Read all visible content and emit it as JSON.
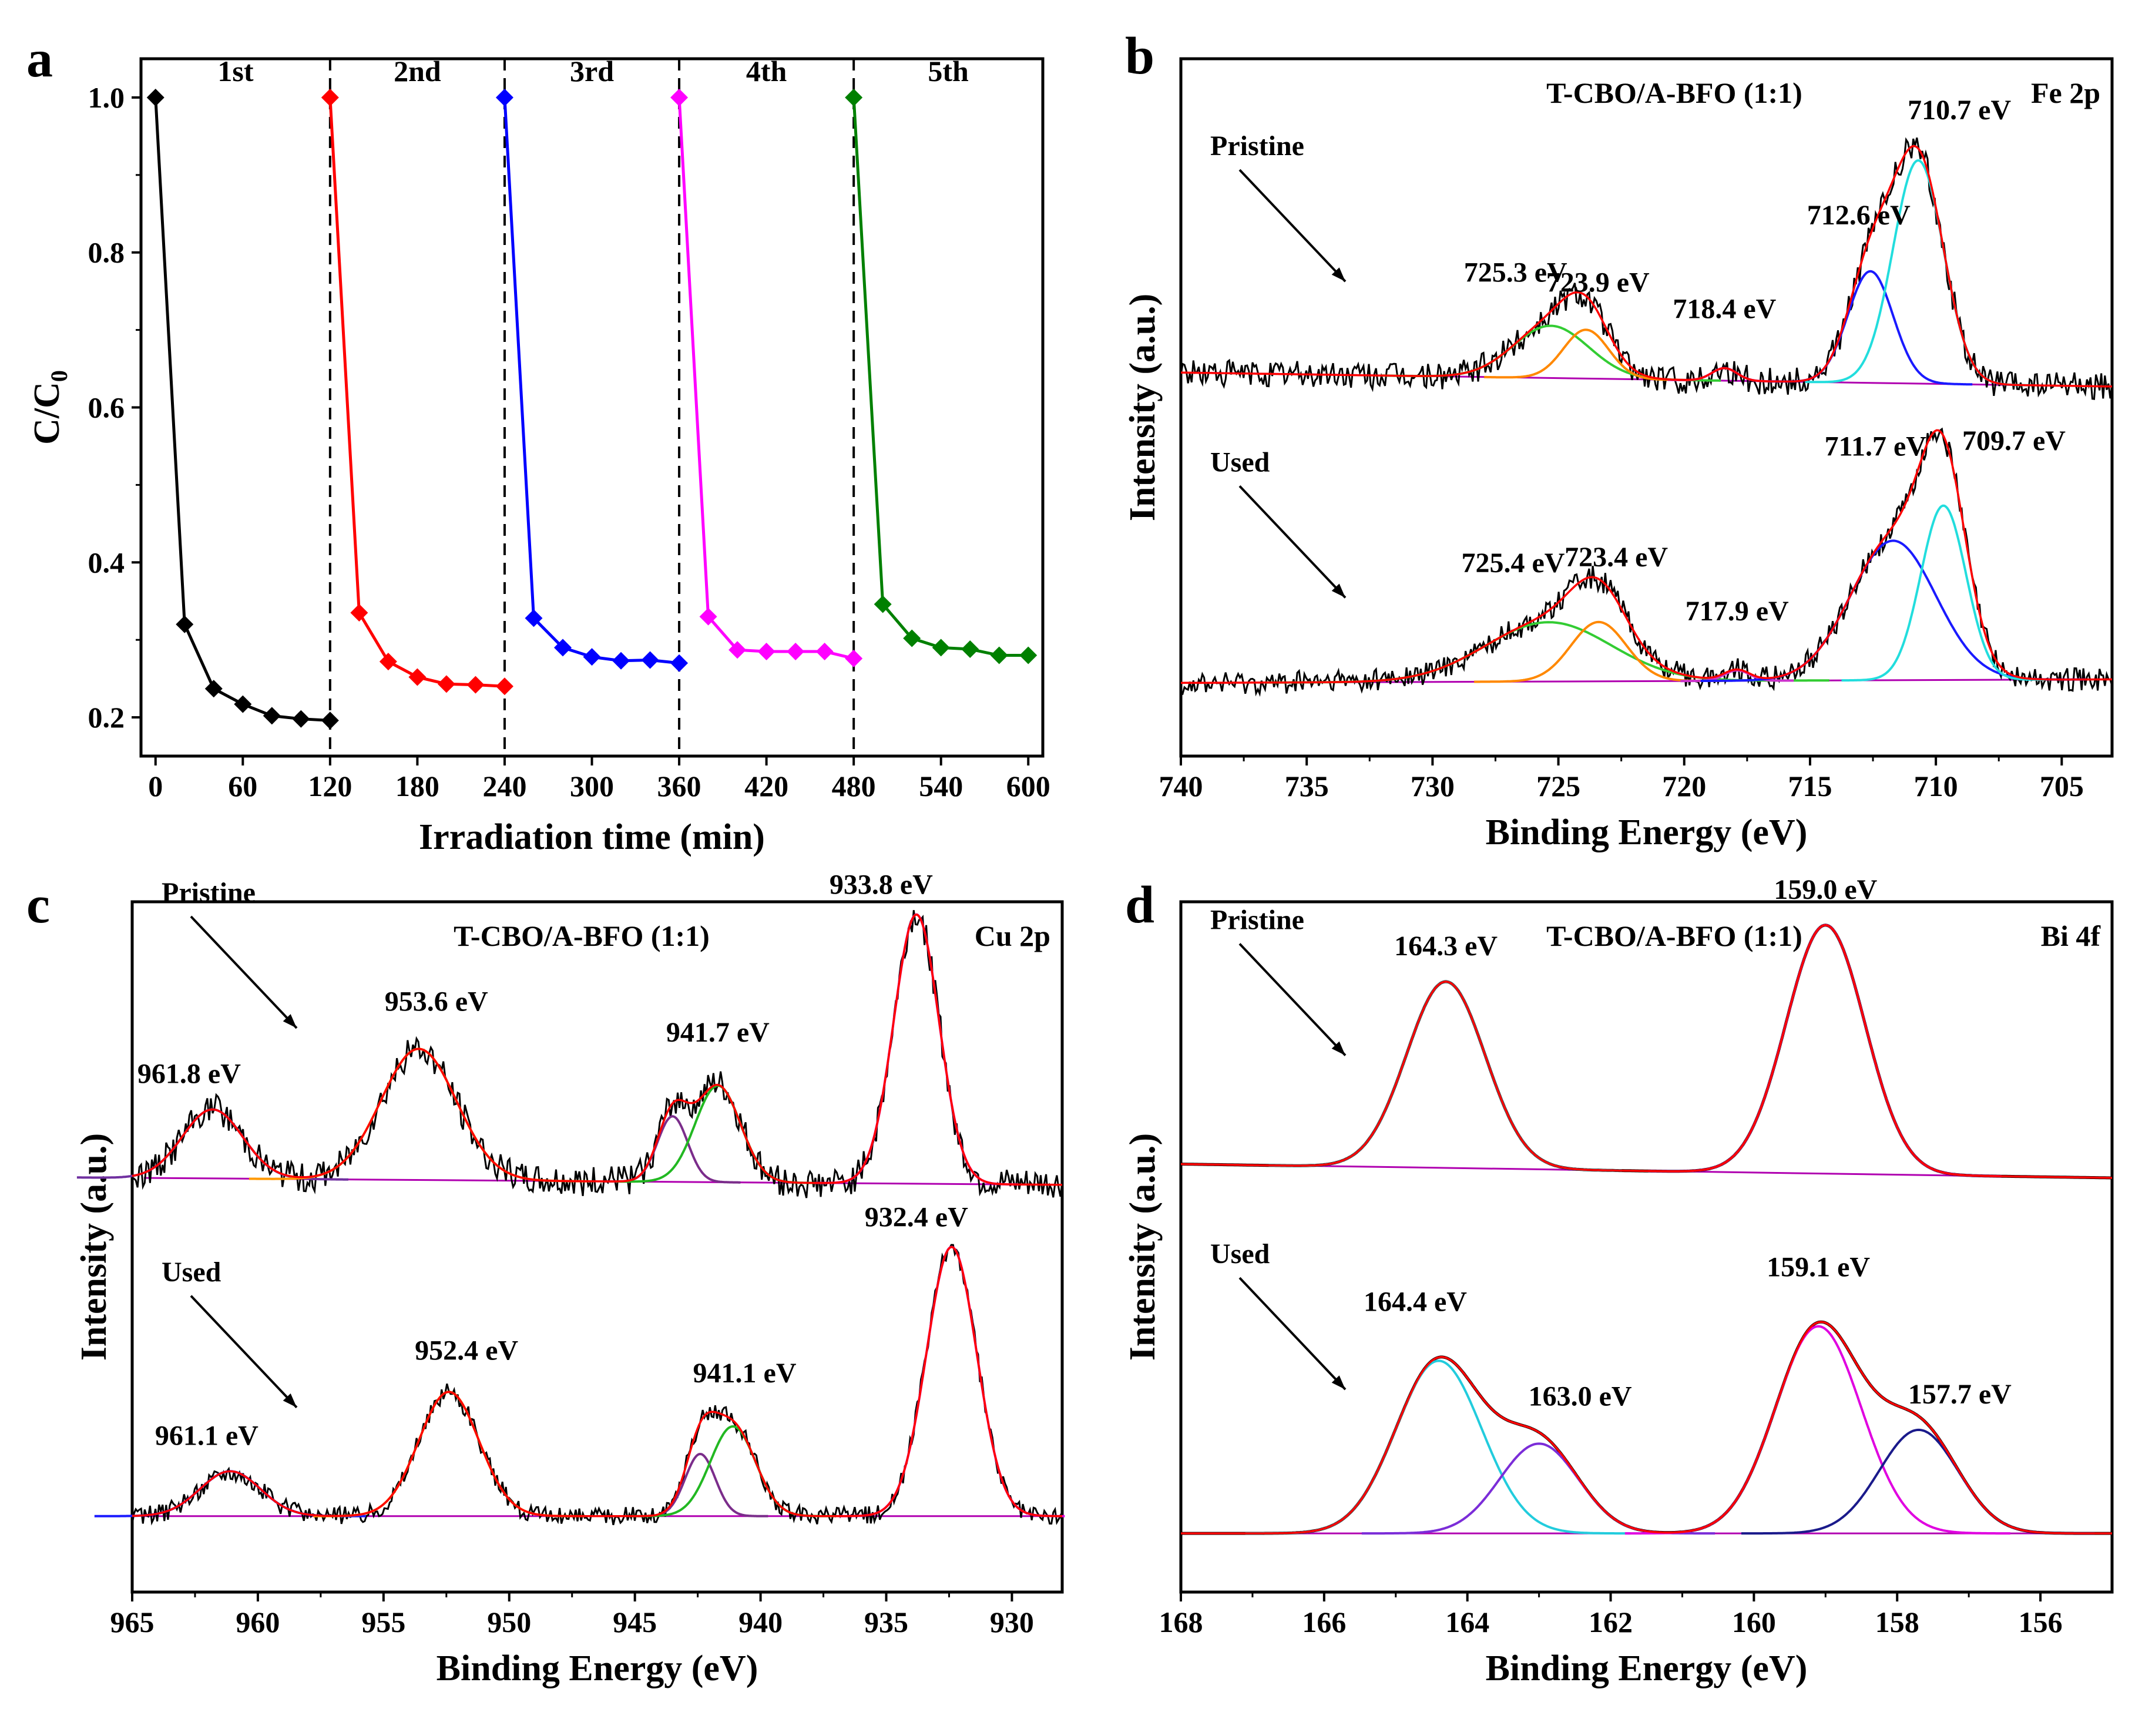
{
  "chart_data": [
    {
      "panel": "a",
      "type": "line",
      "panel_label": "a",
      "xlabel": "Irradiation time (min)",
      "ylabel": "C/C",
      "ylabel_sub": "0",
      "xlim": [
        -10,
        610
      ],
      "ylim": [
        0.15,
        1.05
      ],
      "xticks": [
        0,
        60,
        120,
        180,
        240,
        300,
        360,
        420,
        480,
        540,
        600
      ],
      "yticks": [
        0.2,
        0.4,
        0.6,
        0.8,
        1.0
      ],
      "ytick_labels": [
        "0.2",
        "0.4",
        "0.6",
        "0.8",
        "1.0"
      ],
      "cycle_labels": [
        "1st",
        "2nd",
        "3rd",
        "4th",
        "5th"
      ],
      "dividers": [
        120,
        240,
        360,
        480
      ],
      "series": [
        {
          "name": "1st",
          "color": "#000000",
          "x": [
            0,
            20,
            40,
            60,
            80,
            100,
            120
          ],
          "values": [
            1.0,
            0.32,
            0.237,
            0.217,
            0.202,
            0.198,
            0.196
          ]
        },
        {
          "name": "2nd",
          "color": "#ff0000",
          "x": [
            120,
            140,
            160,
            180,
            200,
            220,
            240
          ],
          "values": [
            1.0,
            0.335,
            0.272,
            0.252,
            0.243,
            0.242,
            0.24
          ]
        },
        {
          "name": "3rd",
          "color": "#0000ff",
          "x": [
            240,
            260,
            280,
            300,
            320,
            340,
            360
          ],
          "values": [
            1.0,
            0.328,
            0.29,
            0.278,
            0.273,
            0.274,
            0.27
          ]
        },
        {
          "name": "4th",
          "color": "#ff00ff",
          "x": [
            360,
            380,
            400,
            420,
            440,
            460,
            480
          ],
          "values": [
            1.0,
            0.33,
            0.287,
            0.285,
            0.285,
            0.285,
            0.276
          ]
        },
        {
          "name": "5th",
          "color": "#008000",
          "x": [
            480,
            500,
            520,
            540,
            560,
            580,
            600
          ],
          "values": [
            1.0,
            0.346,
            0.302,
            0.29,
            0.288,
            0.28,
            0.28
          ]
        }
      ]
    },
    {
      "panel": "b",
      "type": "line",
      "panel_label": "b",
      "title": "T-CBO/A-BFO (1:1)",
      "element": "Fe 2p",
      "xlabel": "Binding Energy (eV)",
      "ylabel": "Intensity (a.u.)",
      "xlim": [
        740,
        703
      ],
      "ylim": [
        0,
        1
      ],
      "xticks": [
        740,
        735,
        730,
        725,
        720,
        715,
        710,
        705
      ],
      "spectra": [
        {
          "name": "Pristine",
          "baseline": 0.55,
          "end_baseline": 0.53,
          "noise": 0.018,
          "peaks": [
            {
              "center": 725.3,
              "label": "725.3 eV",
              "amp": 0.075,
              "width": 1.5,
              "color": "#33cc33"
            },
            {
              "center": 723.9,
              "label": "723.9 eV",
              "amp": 0.07,
              "width": 0.9,
              "color": "#ff8800"
            },
            {
              "center": 718.4,
              "label": "718.4 eV",
              "amp": 0.018,
              "width": 0.5,
              "color": "#cc33cc"
            },
            {
              "center": 712.6,
              "label": "712.6 eV",
              "amp": 0.16,
              "width": 0.9,
              "color": "#1a1aff"
            },
            {
              "center": 710.7,
              "label": "710.7 eV",
              "amp": 0.32,
              "width": 1.0,
              "color": "#22dddd"
            }
          ]
        },
        {
          "name": "Used",
          "baseline": 0.105,
          "end_baseline": 0.11,
          "noise": 0.015,
          "peaks": [
            {
              "center": 725.4,
              "label": "725.4 eV",
              "amp": 0.085,
              "width": 2.5,
              "color": "#33cc33"
            },
            {
              "center": 723.4,
              "label": "723.4 eV",
              "amp": 0.085,
              "width": 1.1,
              "color": "#ff8800"
            },
            {
              "center": 717.9,
              "label": "717.9 eV",
              "amp": 0.015,
              "width": 0.5,
              "color": "#cc33cc"
            },
            {
              "center": 711.7,
              "label": "711.7 eV",
              "amp": 0.2,
              "width": 1.7,
              "color": "#1a1aff"
            },
            {
              "center": 709.7,
              "label": "709.7 eV",
              "amp": 0.25,
              "width": 0.9,
              "color": "#22dddd"
            }
          ]
        }
      ]
    },
    {
      "panel": "c",
      "type": "line",
      "panel_label": "c",
      "title": "T-CBO/A-BFO (1:1)",
      "element": "Cu 2p",
      "xlabel": "Binding Energy (eV)",
      "ylabel": "Intensity (a.u.)",
      "xlim": [
        965,
        928
      ],
      "ylim": [
        0,
        1
      ],
      "xticks": [
        965,
        960,
        955,
        950,
        945,
        940,
        935,
        930
      ],
      "spectra": [
        {
          "name": "Pristine",
          "baseline": 0.6,
          "end_baseline": 0.59,
          "noise": 0.02,
          "peaks": [
            {
              "center": 961.8,
              "label": "961.8 eV",
              "amp": 0.1,
              "width": 1.2,
              "color": "#7030a0"
            },
            {
              "center": 953.6,
              "label": "953.6 eV",
              "amp": 0.19,
              "width": 1.5,
              "color": "#ff9900"
            },
            {
              "center": 943.5,
              "label": "",
              "amp": 0.095,
              "width": 0.6,
              "color": "#7b2d8b"
            },
            {
              "center": 941.7,
              "label": "941.7 eV",
              "amp": 0.14,
              "width": 0.9,
              "color": "#22b822"
            },
            {
              "center": 933.8,
              "label": "933.8 eV",
              "amp": 0.39,
              "width": 0.9,
              "color": "#e000e0"
            }
          ]
        },
        {
          "name": "Used",
          "baseline": 0.11,
          "end_baseline": 0.11,
          "noise": 0.012,
          "peaks": [
            {
              "center": 961.1,
              "label": "961.1 eV",
              "amp": 0.065,
              "width": 1.2,
              "color": "#1a1aff"
            },
            {
              "center": 952.4,
              "label": "952.4 eV",
              "amp": 0.18,
              "width": 1.2,
              "color": "#ff9900"
            },
            {
              "center": 942.4,
              "label": "",
              "amp": 0.09,
              "width": 0.6,
              "color": "#7b2d8b"
            },
            {
              "center": 941.1,
              "label": "941.1 eV",
              "amp": 0.13,
              "width": 0.9,
              "color": "#22b822"
            },
            {
              "center": 932.4,
              "label": "932.4 eV",
              "amp": 0.39,
              "width": 1.0,
              "color": "#e000e0"
            }
          ]
        }
      ]
    },
    {
      "panel": "d",
      "type": "line",
      "panel_label": "d",
      "title": "T-CBO/A-BFO (1:1)",
      "element": "Bi 4f",
      "xlabel": "Binding Energy (eV)",
      "ylabel": "Intensity (a.u.)",
      "xlim": [
        168,
        155
      ],
      "ylim": [
        0,
        1
      ],
      "xticks": [
        168,
        166,
        164,
        162,
        160,
        158,
        156
      ],
      "spectra": [
        {
          "name": "Pristine",
          "baseline": 0.62,
          "end_baseline": 0.6,
          "noise": 0.0,
          "peaks": [
            {
              "center": 164.3,
              "label": "164.3 eV",
              "amp": 0.27,
              "width": 0.55,
              "color": "#22ccdd"
            },
            {
              "center": 159.0,
              "label": "159.0 eV",
              "amp": 0.36,
              "width": 0.55,
              "color": "#e000e0"
            }
          ]
        },
        {
          "name": "Used",
          "baseline": 0.085,
          "end_baseline": 0.085,
          "noise": 0.0,
          "peaks": [
            {
              "center": 164.4,
              "label": "164.4 eV",
              "amp": 0.25,
              "width": 0.6,
              "color": "#22ccdd"
            },
            {
              "center": 163.0,
              "label": "163.0 eV",
              "amp": 0.13,
              "width": 0.55,
              "color": "#7b2dd8"
            },
            {
              "center": 159.1,
              "label": "159.1 eV",
              "amp": 0.3,
              "width": 0.6,
              "color": "#e000e0"
            },
            {
              "center": 157.7,
              "label": "157.7 eV",
              "amp": 0.15,
              "width": 0.55,
              "color": "#1a1a8b"
            }
          ]
        }
      ]
    }
  ]
}
